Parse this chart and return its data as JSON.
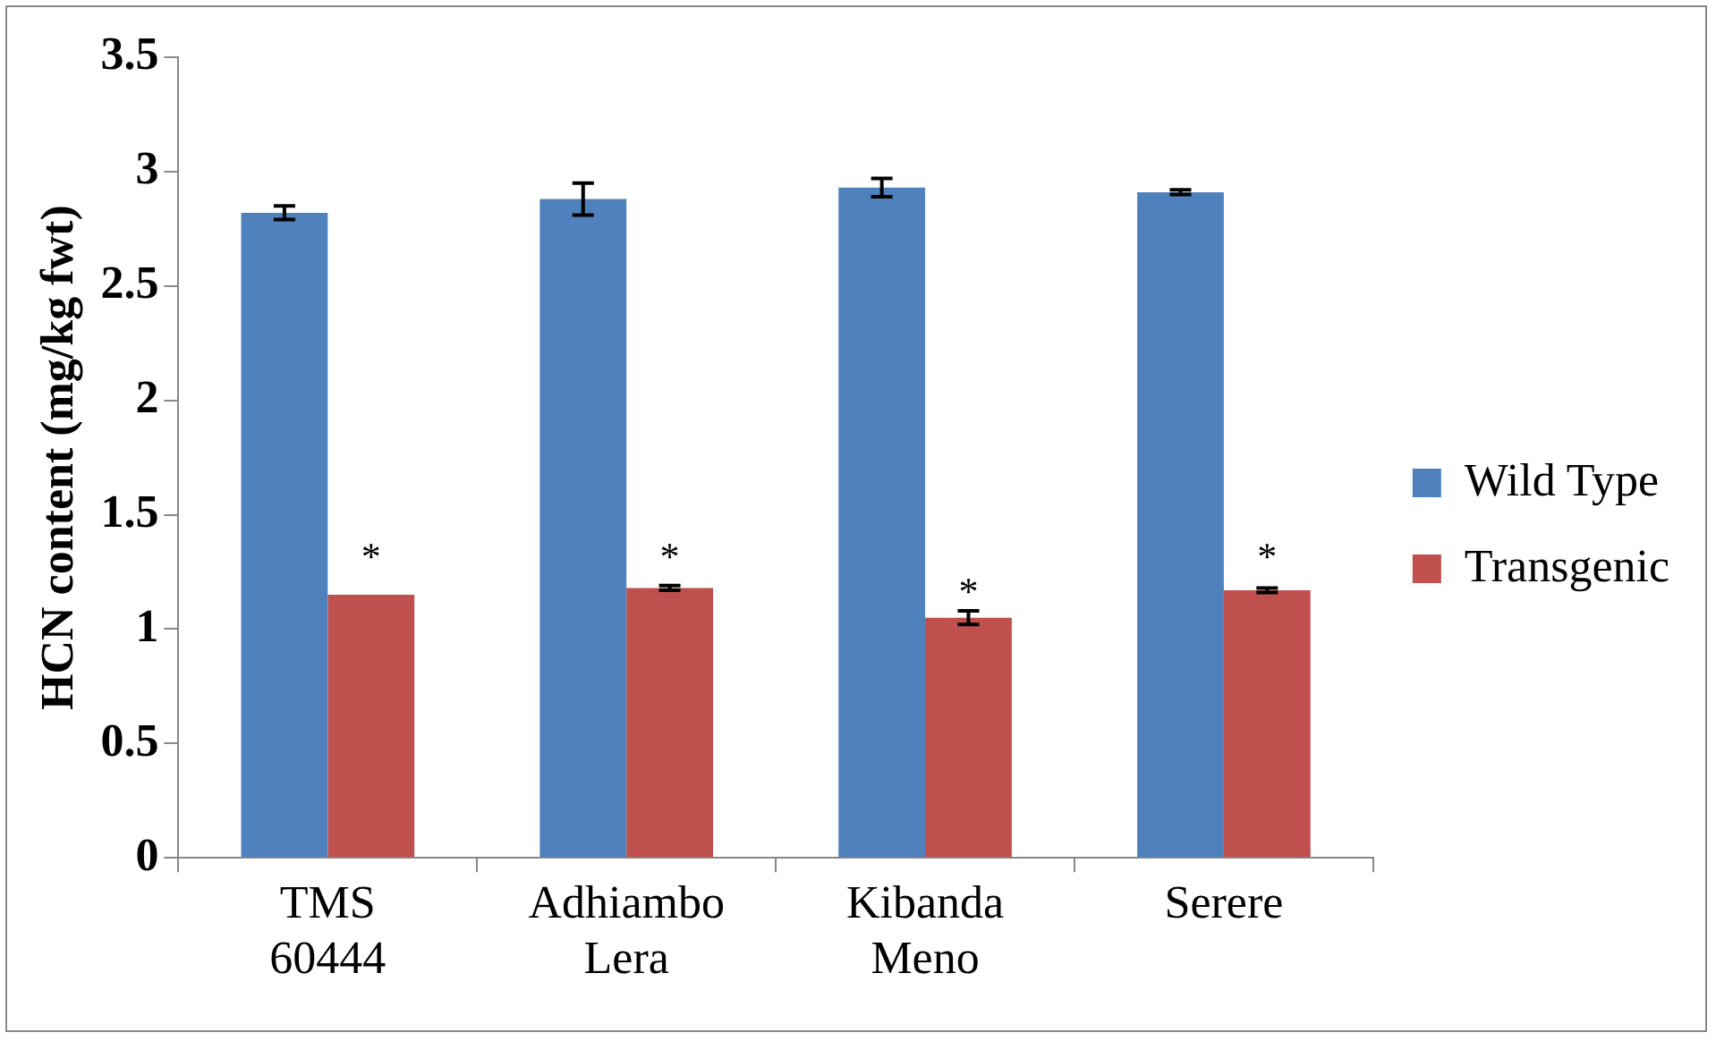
{
  "chart_data": {
    "type": "bar",
    "ylabel": "HCN content (mg/kg fwt)",
    "categories": [
      "TMS 60444",
      "Adhiambo Lera",
      "Kibanda Meno",
      "Serere"
    ],
    "series": [
      {
        "name": "Wild Type",
        "color": "#4f81bd",
        "values": [
          2.82,
          2.88,
          2.93,
          2.91
        ],
        "errors": [
          0.03,
          0.07,
          0.04,
          0.01
        ]
      },
      {
        "name": "Transgenic",
        "color": "#c0504d",
        "values": [
          1.15,
          1.18,
          1.05,
          1.17
        ],
        "errors": [
          null,
          0.01,
          0.03,
          0.01
        ]
      }
    ],
    "ylim": [
      0,
      3.5
    ],
    "yticks": [
      0,
      0.5,
      1,
      1.5,
      2,
      2.5,
      3,
      3.5
    ],
    "grid": false,
    "legend": "right",
    "annotations": [
      {
        "text": "*",
        "x": "TMS 60444",
        "y": 1.35
      },
      {
        "text": "*",
        "x": "Adhiambo Lera",
        "y": 1.35
      },
      {
        "text": "*",
        "x": "Kibanda Meno",
        "y": 1.2
      },
      {
        "text": "*",
        "x": "Serere",
        "y": 1.35
      }
    ]
  }
}
